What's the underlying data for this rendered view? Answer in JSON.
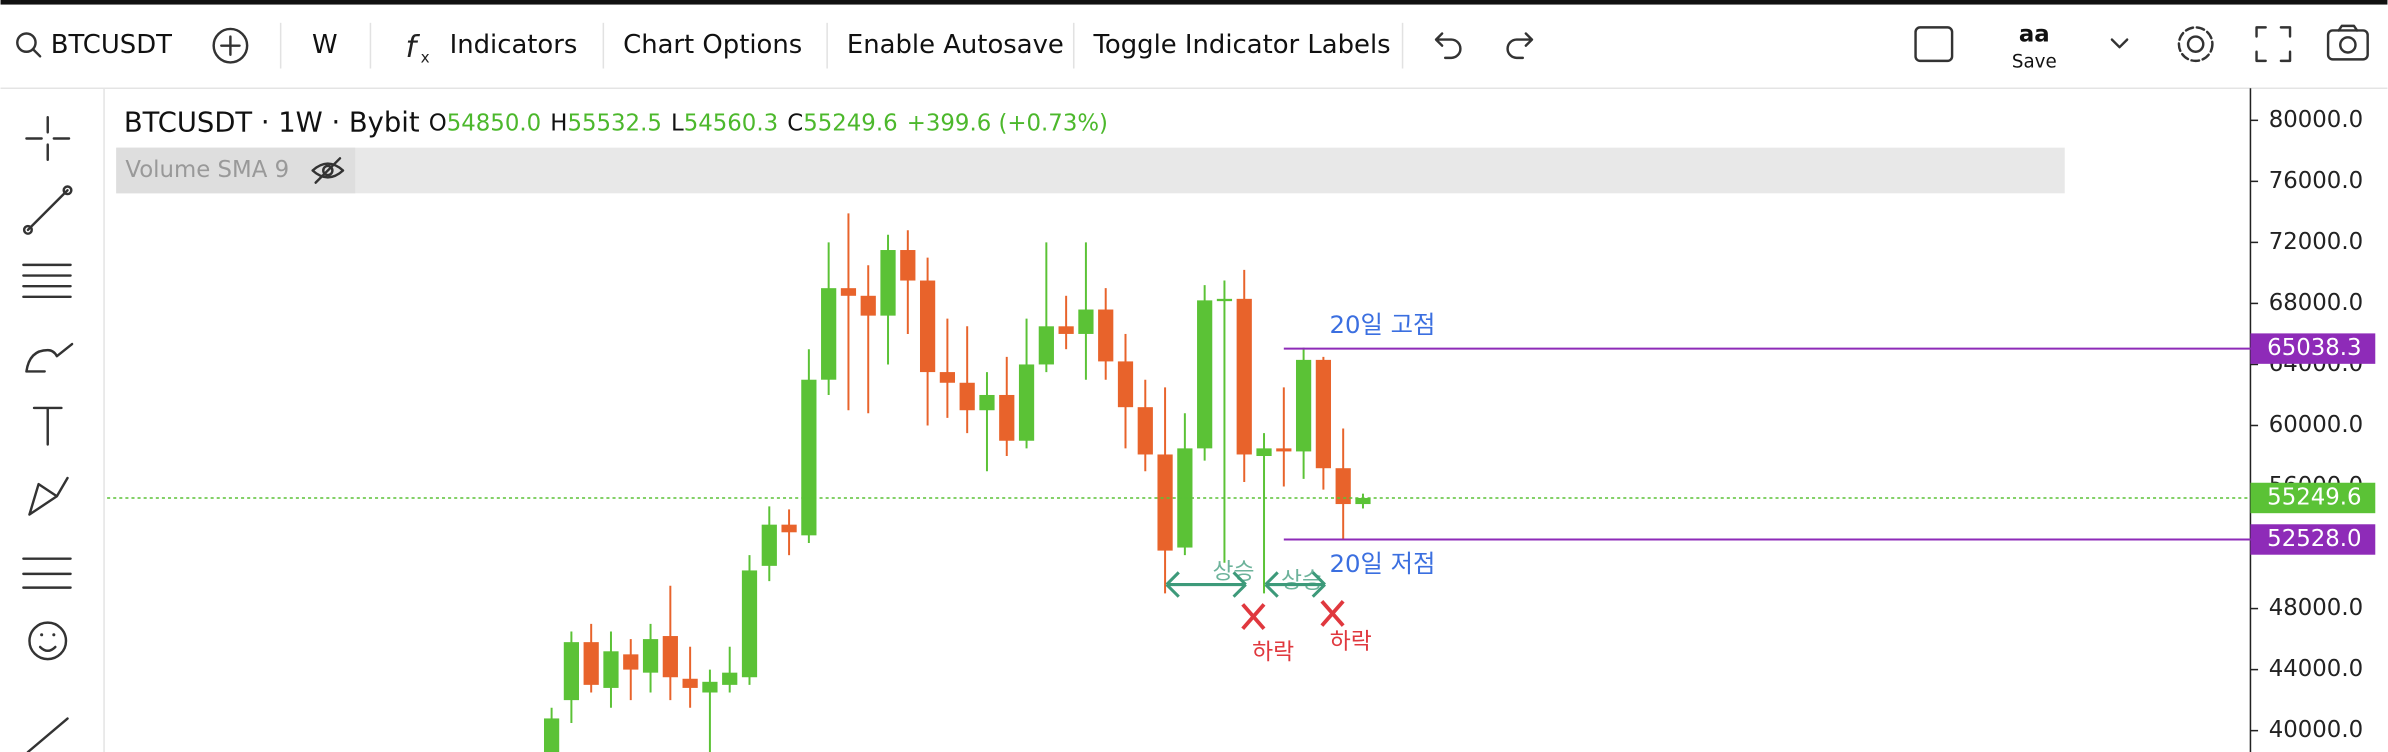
{
  "toolbar": {
    "symbol": "BTCUSDT",
    "interval": "W",
    "buttons": [
      "Indicators",
      "Chart Options",
      "Enable Autosave",
      "Toggle Indicator Labels"
    ],
    "font_button": "aa",
    "save_label": "Save"
  },
  "legend": {
    "title": "BTCUSDT · 1W · Bybit",
    "open_letter": "O",
    "open": "54850.0",
    "high_letter": "H",
    "high": "55532.5",
    "low_letter": "L",
    "low": "54560.3",
    "close_letter": "C",
    "close": "55249.6",
    "change": "+399.6 (+0.73%)",
    "indicator": "Volume SMA 9"
  },
  "chart_data": {
    "type": "candlestick",
    "up_color": "#5bc236",
    "down_color": "#e8632b",
    "open": [
      38500,
      42000,
      45800,
      42800,
      45000,
      43800,
      46200,
      43400,
      42500,
      43000,
      43500,
      50800,
      53500,
      52800,
      63000,
      69000,
      68500,
      67200,
      71500,
      69500,
      63500,
      62800,
      61000,
      62000,
      59000,
      64000,
      66500,
      66000,
      67600,
      64200,
      61200,
      58100,
      52000,
      58500,
      68200,
      68300,
      58000,
      58500,
      58300,
      64300,
      57200,
      54850
    ],
    "high": [
      41500,
      46500,
      47000,
      46500,
      46000,
      47000,
      49500,
      45500,
      44000,
      45500,
      51500,
      54700,
      54500,
      65000,
      72000,
      73900,
      70500,
      72500,
      72800,
      71000,
      67000,
      66500,
      63500,
      64500,
      67000,
      72000,
      68500,
      72000,
      69000,
      66000,
      63000,
      62500,
      60800,
      69200,
      69500,
      70200,
      59500,
      62500,
      65100,
      64500,
      59800,
      55532.5
    ],
    "low": [
      38000,
      40500,
      42500,
      41500,
      42000,
      42500,
      42000,
      41500,
      38500,
      42500,
      43000,
      49800,
      51500,
      52300,
      62000,
      61000,
      60800,
      64000,
      66000,
      60000,
      60500,
      59500,
      57000,
      58000,
      58500,
      63500,
      65000,
      63000,
      63000,
      58500,
      57000,
      49000,
      51500,
      57700,
      51000,
      56300,
      49000,
      56000,
      56500,
      55800,
      52528,
      54560.3
    ],
    "close": [
      40800,
      45800,
      43000,
      45200,
      44000,
      46000,
      43500,
      42800,
      43200,
      43800,
      50500,
      53500,
      53000,
      63000,
      69000,
      68500,
      67200,
      71500,
      69500,
      63500,
      62800,
      61000,
      62000,
      59000,
      64000,
      66500,
      66000,
      67600,
      64200,
      61200,
      58100,
      51800,
      58500,
      68200,
      68300,
      58100,
      58500,
      58300,
      64300,
      57200,
      54850,
      55249.6
    ],
    "ylim": [
      38600,
      82100
    ],
    "yticks": [
      {
        "value": 40000,
        "label": "40000.0"
      },
      {
        "value": 44000,
        "label": "44000.0"
      },
      {
        "value": 48000,
        "label": "48000.0"
      },
      {
        "value": 52000,
        "label": "52000.0"
      },
      {
        "value": 56000,
        "label": "56000.0"
      },
      {
        "value": 60000,
        "label": "60000.0"
      },
      {
        "value": 64000,
        "label": "64000.0"
      },
      {
        "value": 68000,
        "label": "68000.0"
      },
      {
        "value": 72000,
        "label": "72000.0"
      },
      {
        "value": 76000,
        "label": "76000.0"
      },
      {
        "value": 80000,
        "label": "80000.0"
      }
    ],
    "price_lines": [
      {
        "value": 65038.3,
        "label": "65038.3",
        "color": "#8e2bb8",
        "style": "solid"
      },
      {
        "value": 52528,
        "label": "52528.0",
        "color": "#8e2bb8",
        "style": "solid"
      },
      {
        "value": 55249.6,
        "label": "55249.6",
        "color": "#5bc236",
        "style": "dotted"
      }
    ],
    "annotations": [
      "20일 고점",
      "20일 저점",
      "상승",
      "상승",
      "하락",
      "하락"
    ]
  }
}
